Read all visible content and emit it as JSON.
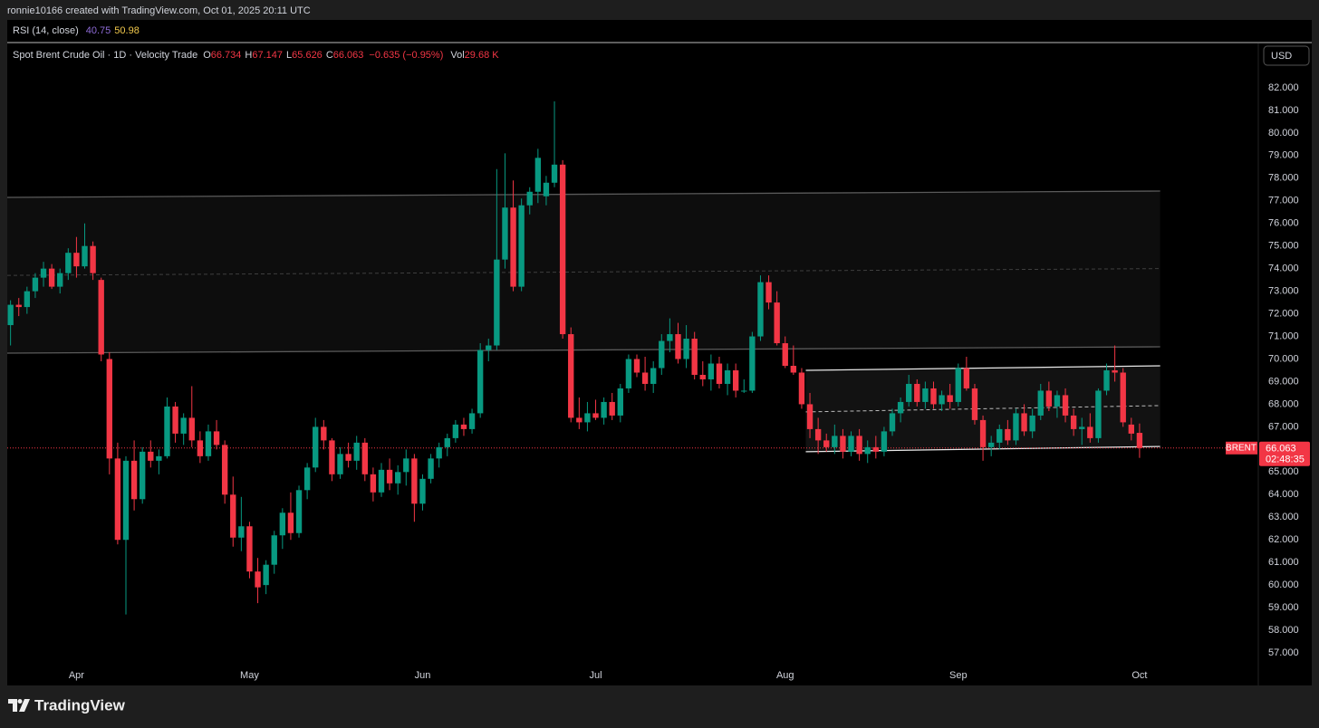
{
  "chart_data": {
    "type": "candlestick",
    "header": "ronnie10166 created with TradingView.com, Oct 01, 2025 20:11 UTC",
    "rsi": {
      "title": "RSI (14, close)",
      "value1": "40.75",
      "value2": "50.98",
      "color1": "#8e6bd6",
      "color2": "#f2c94c"
    },
    "legend": {
      "symbol": "Spot Brent Crude Oil · 1D · Velocity Trade",
      "open_label": "O",
      "open": "66.734",
      "high_label": "H",
      "high": "67.147",
      "low_label": "L",
      "low": "65.626",
      "close_label": "C",
      "close": "66.063",
      "change": "−0.635 (−0.95%)",
      "vol_label": "Vol",
      "vol": "29.68 K"
    },
    "currency": "USD",
    "last_price": {
      "symbol": "BRENT",
      "value": "66.063",
      "countdown": "02:48:35"
    },
    "brand": "TradingView",
    "up_color": "#089981",
    "down_color": "#f23645",
    "xlim": [
      -0.4,
      151.3
    ],
    "ylim": [
      55.56,
      83.96
    ],
    "xticks": [
      {
        "value": 8,
        "label": "Apr"
      },
      {
        "value": 29,
        "label": "May"
      },
      {
        "value": 50,
        "label": "Jun"
      },
      {
        "value": 71,
        "label": "Jul"
      },
      {
        "value": 94,
        "label": "Aug"
      },
      {
        "value": 115,
        "label": "Sep"
      },
      {
        "value": 137,
        "label": "Oct"
      }
    ],
    "yticks": [
      {
        "value": 57,
        "label": "57.000"
      },
      {
        "value": 58,
        "label": "58.000"
      },
      {
        "value": 59,
        "label": "59.000"
      },
      {
        "value": 60,
        "label": "60.000"
      },
      {
        "value": 61,
        "label": "61.000"
      },
      {
        "value": 62,
        "label": "62.000"
      },
      {
        "value": 63,
        "label": "63.000"
      },
      {
        "value": 64,
        "label": "64.000"
      },
      {
        "value": 65,
        "label": "65.000"
      },
      {
        "value": 66,
        "label": "66.000"
      },
      {
        "value": 67,
        "label": "67.000"
      },
      {
        "value": 68,
        "label": "68.000"
      },
      {
        "value": 69,
        "label": "69.000"
      },
      {
        "value": 70,
        "label": "70.000"
      },
      {
        "value": 71,
        "label": "71.000"
      },
      {
        "value": 72,
        "label": "72.000"
      },
      {
        "value": 73,
        "label": "73.000"
      },
      {
        "value": 74,
        "label": "74.000"
      },
      {
        "value": 75,
        "label": "75.000"
      },
      {
        "value": 76,
        "label": "76.000"
      },
      {
        "value": 77,
        "label": "77.000"
      },
      {
        "value": 78,
        "label": "78.000"
      },
      {
        "value": 79,
        "label": "79.000"
      },
      {
        "value": 80,
        "label": "80.000"
      },
      {
        "value": 81,
        "label": "81.000"
      },
      {
        "value": 82,
        "label": "82.000"
      }
    ],
    "zone": {
      "x": [
        -0.4,
        139.5
      ],
      "top": [
        77.15,
        77.43
      ],
      "mid": [
        73.7,
        74.0
      ],
      "bottom": [
        70.26,
        70.54
      ]
    },
    "channel": {
      "x": [
        96.5,
        139.5
      ],
      "top": [
        69.5,
        69.7
      ],
      "mid": [
        67.66,
        67.94
      ],
      "bottom": [
        65.9,
        66.13
      ]
    },
    "candles": [
      [
        71.5,
        72.6,
        70.6,
        72.4
      ],
      [
        72.4,
        72.7,
        71.9,
        72.3
      ],
      [
        72.3,
        73.2,
        72.0,
        73.0
      ],
      [
        73.0,
        73.8,
        72.7,
        73.6
      ],
      [
        73.6,
        74.3,
        73.2,
        74.0
      ],
      [
        74.0,
        74.2,
        73.1,
        73.2
      ],
      [
        73.2,
        74.0,
        72.9,
        73.8
      ],
      [
        73.8,
        74.9,
        73.5,
        74.7
      ],
      [
        74.7,
        75.4,
        73.6,
        74.1
      ],
      [
        74.1,
        76.0,
        74.0,
        75.0
      ],
      [
        75.0,
        75.2,
        73.5,
        73.8
      ],
      [
        73.5,
        73.6,
        69.9,
        70.2
      ],
      [
        70.0,
        70.3,
        64.9,
        65.6
      ],
      [
        65.6,
        66.3,
        61.8,
        62.0
      ],
      [
        62.0,
        65.7,
        58.7,
        65.5
      ],
      [
        65.5,
        66.4,
        63.3,
        63.8
      ],
      [
        63.8,
        66.1,
        63.6,
        65.9
      ],
      [
        65.9,
        66.4,
        65.2,
        65.5
      ],
      [
        65.5,
        66.0,
        64.9,
        65.7
      ],
      [
        65.7,
        68.3,
        65.6,
        67.9
      ],
      [
        67.9,
        68.1,
        66.3,
        66.7
      ],
      [
        66.7,
        67.6,
        66.2,
        67.4
      ],
      [
        67.4,
        68.8,
        66.1,
        66.4
      ],
      [
        66.4,
        66.8,
        65.4,
        65.7
      ],
      [
        65.7,
        67.1,
        65.5,
        66.8
      ],
      [
        66.8,
        67.3,
        66.0,
        66.2
      ],
      [
        66.2,
        66.4,
        63.6,
        64.0
      ],
      [
        64.0,
        64.8,
        61.7,
        62.1
      ],
      [
        62.1,
        63.9,
        61.5,
        62.6
      ],
      [
        62.6,
        62.8,
        60.3,
        60.6
      ],
      [
        60.6,
        61.2,
        59.2,
        59.9
      ],
      [
        60.0,
        61.1,
        59.6,
        60.9
      ],
      [
        60.9,
        62.4,
        60.5,
        62.2
      ],
      [
        62.2,
        63.4,
        61.6,
        63.2
      ],
      [
        63.2,
        64.1,
        62.0,
        62.3
      ],
      [
        62.3,
        64.4,
        62.1,
        64.2
      ],
      [
        64.2,
        65.4,
        63.8,
        65.2
      ],
      [
        65.2,
        67.4,
        65.0,
        67.0
      ],
      [
        67.0,
        67.3,
        66.0,
        66.4
      ],
      [
        66.4,
        66.5,
        64.6,
        64.9
      ],
      [
        64.9,
        66.1,
        64.7,
        65.8
      ],
      [
        65.8,
        66.3,
        65.2,
        65.5
      ],
      [
        65.5,
        66.6,
        65.1,
        66.3
      ],
      [
        66.3,
        66.5,
        64.6,
        64.9
      ],
      [
        64.9,
        65.2,
        63.7,
        64.1
      ],
      [
        64.1,
        65.4,
        63.9,
        65.1
      ],
      [
        65.1,
        65.6,
        64.2,
        64.5
      ],
      [
        64.5,
        65.3,
        64.0,
        65.0
      ],
      [
        65.0,
        66.0,
        64.4,
        65.6
      ],
      [
        65.6,
        65.8,
        62.8,
        63.6
      ],
      [
        63.6,
        64.9,
        63.3,
        64.7
      ],
      [
        64.7,
        65.8,
        64.5,
        65.6
      ],
      [
        65.6,
        66.3,
        65.2,
        66.1
      ],
      [
        66.1,
        66.7,
        65.7,
        66.5
      ],
      [
        66.5,
        67.3,
        66.3,
        67.1
      ],
      [
        67.1,
        67.4,
        66.6,
        66.9
      ],
      [
        66.9,
        67.8,
        66.7,
        67.6
      ],
      [
        67.6,
        70.7,
        67.4,
        70.4
      ],
      [
        70.4,
        70.9,
        69.9,
        70.6
      ],
      [
        70.6,
        78.4,
        70.4,
        74.4
      ],
      [
        74.4,
        79.1,
        74.0,
        76.7
      ],
      [
        76.7,
        77.9,
        73.0,
        73.2
      ],
      [
        73.2,
        77.1,
        73.0,
        76.8
      ],
      [
        76.8,
        77.6,
        76.4,
        77.4
      ],
      [
        77.4,
        79.3,
        76.9,
        78.9
      ],
      [
        77.2,
        78.1,
        76.8,
        77.8
      ],
      [
        77.8,
        81.4,
        77.6,
        78.6
      ],
      [
        78.6,
        78.8,
        70.9,
        71.1
      ],
      [
        71.1,
        71.4,
        67.2,
        67.4
      ],
      [
        67.4,
        68.3,
        66.9,
        67.2
      ],
      [
        67.2,
        68.1,
        66.8,
        67.6
      ],
      [
        67.6,
        68.2,
        67.3,
        67.4
      ],
      [
        67.4,
        68.3,
        67.1,
        68.1
      ],
      [
        68.1,
        68.5,
        67.3,
        67.5
      ],
      [
        67.5,
        68.9,
        67.2,
        68.7
      ],
      [
        68.7,
        70.2,
        68.5,
        70.0
      ],
      [
        70.0,
        70.2,
        69.2,
        69.4
      ],
      [
        69.4,
        70.1,
        68.6,
        68.9
      ],
      [
        68.9,
        69.9,
        68.5,
        69.6
      ],
      [
        69.6,
        71.1,
        69.3,
        70.8
      ],
      [
        70.8,
        71.8,
        70.3,
        71.1
      ],
      [
        71.1,
        71.6,
        69.8,
        70.0
      ],
      [
        70.0,
        71.5,
        69.6,
        70.9
      ],
      [
        70.9,
        71.2,
        69.1,
        69.3
      ],
      [
        69.3,
        69.9,
        68.8,
        69.1
      ],
      [
        69.1,
        70.2,
        68.6,
        69.8
      ],
      [
        69.8,
        70.1,
        68.7,
        68.9
      ],
      [
        68.9,
        69.8,
        68.4,
        69.5
      ],
      [
        69.5,
        69.8,
        68.3,
        68.6
      ],
      [
        68.6,
        69.1,
        68.5,
        68.6
      ],
      [
        68.6,
        71.2,
        68.5,
        71.0
      ],
      [
        71.0,
        73.7,
        70.8,
        73.4
      ],
      [
        73.4,
        73.7,
        72.2,
        72.5
      ],
      [
        72.5,
        73.0,
        70.6,
        70.7
      ],
      [
        70.7,
        71.0,
        69.6,
        69.7
      ],
      [
        69.7,
        70.6,
        69.3,
        69.4
      ],
      [
        69.4,
        69.6,
        67.8,
        68.0
      ],
      [
        68.0,
        68.5,
        66.5,
        66.9
      ],
      [
        66.9,
        67.4,
        65.8,
        66.4
      ],
      [
        66.4,
        66.7,
        65.9,
        66.1
      ],
      [
        66.1,
        67.1,
        65.8,
        66.6
      ],
      [
        66.6,
        66.9,
        65.6,
        65.9
      ],
      [
        65.9,
        66.8,
        65.7,
        66.6
      ],
      [
        66.6,
        66.9,
        65.5,
        65.8
      ],
      [
        65.8,
        66.4,
        65.4,
        66.1
      ],
      [
        66.1,
        66.6,
        65.6,
        65.9
      ],
      [
        65.9,
        67.0,
        65.7,
        66.8
      ],
      [
        66.8,
        67.8,
        66.6,
        67.6
      ],
      [
        67.6,
        68.3,
        67.2,
        68.1
      ],
      [
        68.1,
        69.3,
        67.9,
        68.9
      ],
      [
        68.9,
        69.1,
        67.9,
        68.1
      ],
      [
        68.1,
        69.0,
        67.8,
        68.7
      ],
      [
        68.7,
        69.0,
        67.8,
        68.0
      ],
      [
        68.0,
        68.6,
        67.7,
        68.4
      ],
      [
        68.4,
        68.9,
        67.8,
        68.1
      ],
      [
        68.1,
        69.8,
        67.9,
        69.6
      ],
      [
        69.6,
        70.1,
        68.6,
        68.7
      ],
      [
        68.7,
        68.9,
        67.1,
        67.3
      ],
      [
        67.3,
        67.5,
        65.5,
        66.1
      ],
      [
        66.1,
        66.6,
        65.7,
        66.3
      ],
      [
        66.3,
        67.1,
        66.0,
        66.9
      ],
      [
        66.9,
        67.3,
        66.2,
        66.4
      ],
      [
        66.4,
        67.8,
        66.2,
        67.6
      ],
      [
        67.6,
        68.0,
        66.6,
        66.8
      ],
      [
        66.8,
        67.8,
        66.5,
        67.5
      ],
      [
        67.5,
        68.9,
        67.3,
        68.6
      ],
      [
        68.6,
        69.0,
        67.7,
        67.9
      ],
      [
        67.9,
        68.6,
        67.4,
        68.4
      ],
      [
        68.4,
        68.7,
        67.2,
        67.5
      ],
      [
        67.5,
        67.8,
        66.6,
        66.9
      ],
      [
        66.9,
        67.4,
        66.2,
        67.0
      ],
      [
        67.0,
        67.6,
        66.3,
        66.5
      ],
      [
        66.5,
        68.7,
        66.3,
        68.6
      ],
      [
        68.6,
        69.8,
        68.4,
        69.5
      ],
      [
        69.5,
        70.6,
        69.0,
        69.4
      ],
      [
        69.4,
        69.6,
        67.0,
        67.2
      ],
      [
        67.1,
        67.4,
        66.4,
        66.7
      ],
      [
        66.734,
        67.147,
        65.626,
        66.063
      ]
    ]
  }
}
